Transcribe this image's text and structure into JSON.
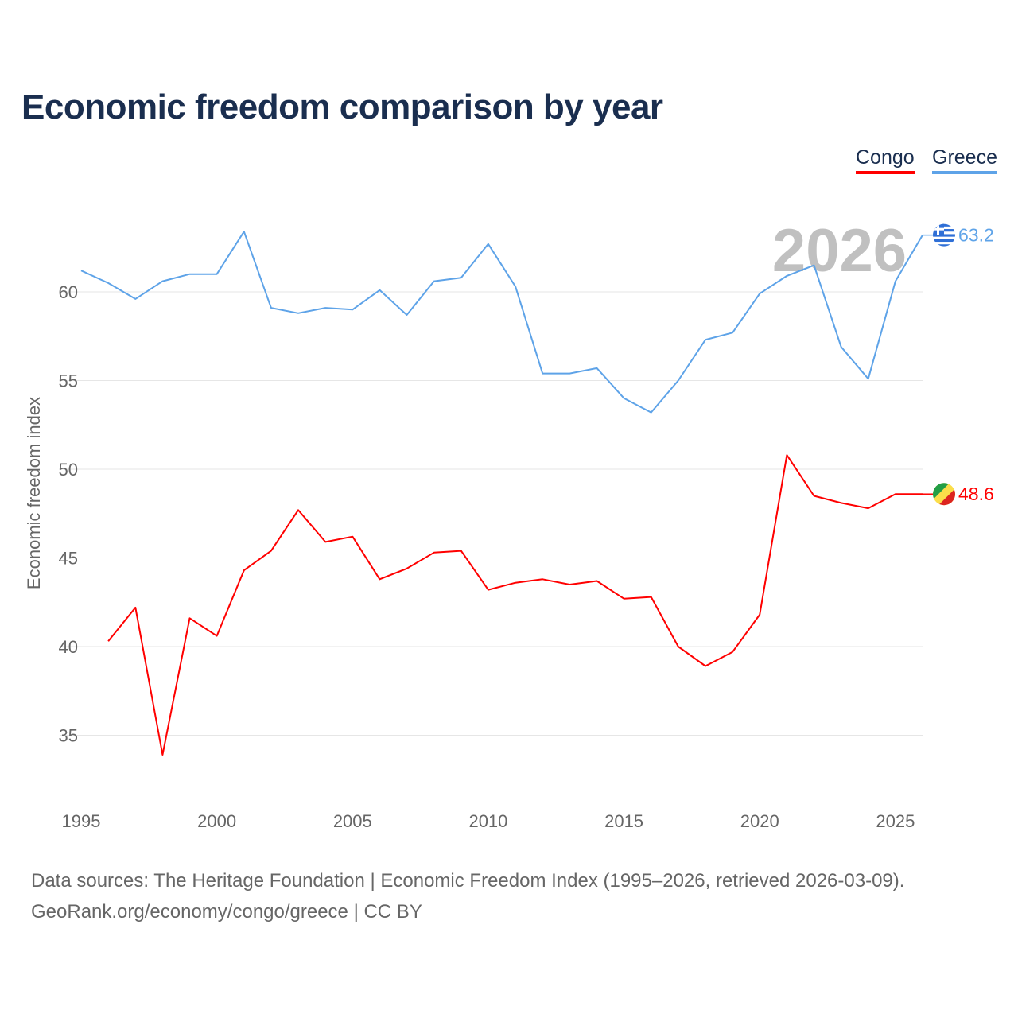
{
  "title": "Economic freedom comparison by year",
  "legend": {
    "congo": "Congo",
    "greece": "Greece"
  },
  "footer": {
    "line1": "Data sources: The Heritage Foundation | Economic Freedom Index (1995–2026, retrieved 2026-03-09).",
    "line2": "GeoRank.org/economy/congo/greece | CC BY"
  },
  "colors": {
    "congo": "#ff0000",
    "greece": "#5ea3e8"
  },
  "chart_data": {
    "type": "line",
    "title": "Economic freedom comparison by year",
    "xlabel": "",
    "ylabel": "Economic freedom index",
    "year_watermark": "2026",
    "xlim": [
      1995,
      2026
    ],
    "ylim": [
      32,
      65
    ],
    "xticks": [
      1995,
      2000,
      2005,
      2010,
      2015,
      2020,
      2025
    ],
    "yticks": [
      35,
      40,
      45,
      50,
      55,
      60
    ],
    "grid": true,
    "legend_position": "top-right",
    "x": [
      1995,
      1996,
      1997,
      1998,
      1999,
      2000,
      2001,
      2002,
      2003,
      2004,
      2005,
      2006,
      2007,
      2008,
      2009,
      2010,
      2011,
      2012,
      2013,
      2014,
      2015,
      2016,
      2017,
      2018,
      2019,
      2020,
      2021,
      2022,
      2023,
      2024,
      2025,
      2026
    ],
    "series": [
      {
        "name": "Greece",
        "end_label": "63.2",
        "values": [
          61.2,
          60.5,
          59.6,
          60.6,
          61.0,
          61.0,
          63.4,
          59.1,
          58.8,
          59.1,
          59.0,
          60.1,
          58.7,
          60.6,
          60.8,
          62.7,
          60.3,
          55.4,
          55.4,
          55.7,
          54.0,
          53.2,
          55.0,
          57.3,
          57.7,
          59.9,
          60.9,
          61.5,
          56.9,
          55.1,
          60.6,
          63.2
        ]
      },
      {
        "name": "Congo",
        "end_label": "48.6",
        "values": [
          null,
          40.3,
          42.2,
          33.9,
          41.6,
          40.6,
          44.3,
          45.4,
          47.7,
          45.9,
          46.2,
          43.8,
          44.4,
          45.3,
          45.4,
          43.2,
          43.6,
          43.8,
          43.5,
          43.7,
          42.7,
          42.8,
          40.0,
          38.9,
          39.7,
          41.8,
          50.8,
          48.5,
          48.1,
          47.8,
          48.6,
          48.6
        ]
      }
    ]
  }
}
